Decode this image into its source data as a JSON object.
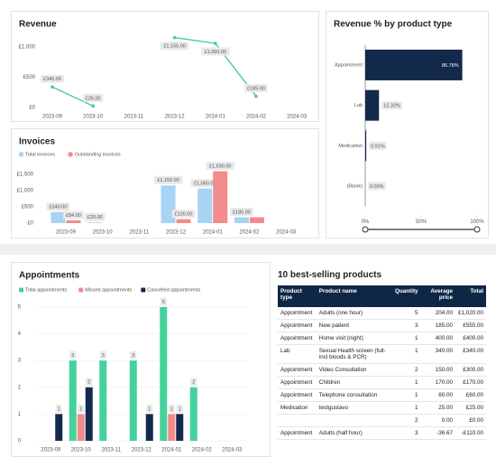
{
  "chart_data": [
    {
      "type": "line",
      "title": "Revenue",
      "categories": [
        "2023-09",
        "2023-10",
        "2023-11",
        "2023-12",
        "2024-01",
        "2024-02",
        "2024-03"
      ],
      "values": [
        340,
        25,
        null,
        1155,
        1060,
        185,
        null
      ],
      "value_labels": [
        "£340.00",
        "£25.00",
        null,
        "£1,155.00",
        "£1,060.00",
        "£185.00",
        null
      ],
      "color": "#45cf96",
      "ylim": [
        0,
        1200
      ],
      "yticks": [
        {
          "value": 0,
          "label": "£0"
        },
        {
          "value": 500,
          "label": "£500"
        },
        {
          "value": 1000,
          "label": "£1,000"
        }
      ]
    },
    {
      "type": "barh",
      "title": "Revenue % by product type",
      "categories": [
        "Appointment",
        "Lab",
        "Medication",
        "(Blank)"
      ],
      "values": [
        86.78,
        12.32,
        0.91,
        0.0
      ],
      "value_labels": [
        "86.78%",
        "12.32%",
        "0.91%",
        "0.00%"
      ],
      "color": "#13294b",
      "xlim": [
        0,
        100
      ],
      "xticks": [
        {
          "value": 0,
          "label": "0%"
        },
        {
          "value": 50,
          "label": "50%"
        },
        {
          "value": 100,
          "label": "100%"
        }
      ]
    },
    {
      "type": "bar",
      "title": "Invoices",
      "categories": [
        "2023-09",
        "2023-10",
        "2023-11",
        "2023-12",
        "2024-01",
        "2024-02",
        "2024-03"
      ],
      "series": [
        {
          "name": "Total invoices",
          "color": "#a7d3f5",
          "values": [
            340,
            20,
            null,
            1155,
            1060,
            180,
            null
          ],
          "value_labels": [
            "£340.00",
            "£20.00",
            null,
            "£1,155.00",
            "£1,060.00",
            "£180.00",
            null
          ]
        },
        {
          "name": "Outstanding invoices",
          "color": "#f28b8b",
          "values": [
            84,
            null,
            null,
            120,
            1590,
            180,
            null
          ],
          "value_labels": [
            "£84.00",
            null,
            null,
            "£120.00",
            "£1,590.00",
            null,
            null
          ]
        }
      ],
      "ylim": [
        0,
        1800
      ],
      "yticks": [
        {
          "value": 0,
          "label": "£0"
        },
        {
          "value": 500,
          "label": "£500"
        },
        {
          "value": 1000,
          "label": "£1,000"
        },
        {
          "value": 1500,
          "label": "£1,500"
        }
      ]
    },
    {
      "type": "bar",
      "title": "Appointments",
      "categories": [
        "2023-09",
        "2023-10",
        "2023-11",
        "2023-12",
        "2024-01",
        "2024-02",
        "2024-03"
      ],
      "series": [
        {
          "name": "Total appointments",
          "color": "#45d19b",
          "values": [
            null,
            3,
            3,
            3,
            5,
            2,
            null
          ]
        },
        {
          "name": "Missed appointments",
          "color": "#f28b8b",
          "values": [
            null,
            1,
            null,
            null,
            1,
            null,
            null
          ]
        },
        {
          "name": "Cancelled appointments",
          "color": "#13294b",
          "values": [
            1,
            2,
            null,
            1,
            1,
            null,
            null
          ]
        }
      ],
      "ylim": [
        0,
        5.2
      ],
      "yticks": [
        0,
        1,
        2,
        3,
        4,
        5
      ],
      "grid": true
    }
  ],
  "table": {
    "title": "10 best-selling products",
    "columns": [
      "Product type",
      "Product name",
      "Quantity",
      "Average price",
      "Total"
    ],
    "rows": [
      [
        "Appointment",
        "Adults (one hour)",
        "5",
        "204.00",
        "£1,020.00"
      ],
      [
        "Appointment",
        "New patient",
        "3",
        "185.00",
        "£555.00"
      ],
      [
        "Appointment",
        "Home visit (night)",
        "1",
        "400.00",
        "£400.00"
      ],
      [
        "Lab",
        "Sexual Health screen (full- incl bloods & PCR)",
        "1",
        "340.00",
        "£340.00"
      ],
      [
        "Appointment",
        "Video Consultation",
        "2",
        "150.00",
        "£300.00"
      ],
      [
        "Appointment",
        "Children",
        "1",
        "170.00",
        "£170.00"
      ],
      [
        "Appointment",
        "Telephone consultation",
        "1",
        "60.00",
        "£60.00"
      ],
      [
        "Medication",
        "testgustavo",
        "1",
        "25.00",
        "£25.00"
      ],
      [
        null,
        null,
        "2",
        "0.00",
        "£0.00"
      ],
      [
        "Appointment",
        "Adults (half hour)",
        "3",
        "-36.67",
        "-£110.00"
      ]
    ]
  }
}
